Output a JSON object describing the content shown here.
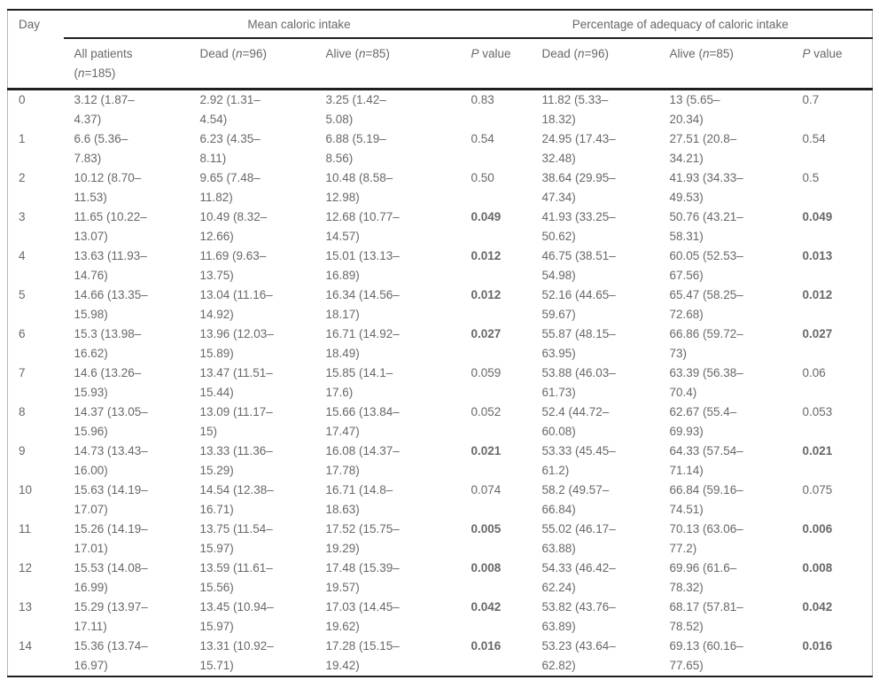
{
  "table": {
    "groups": [
      {
        "label": "Day",
        "span": 1
      },
      {
        "label": "Mean caloric intake",
        "span": 4
      },
      {
        "label": "Percentage of adequacy of caloric intake",
        "span": 3
      }
    ],
    "columns": [
      "All patients\n(n=185)",
      "Dead (n=96)",
      "Alive (n=85)",
      "P value",
      "Dead (n=96)",
      "Alive (n=85)",
      "P value"
    ],
    "rows": [
      {
        "day": "0",
        "mean_all": "3.12 (1.87–\n4.37)",
        "mean_dead": "2.92 (1.31–\n4.54)",
        "mean_alive": "3.25 (1.42–\n5.08)",
        "p_mean": "0.83",
        "pct_dead": "11.82 (5.33–\n18.32)",
        "pct_alive": "13 (5.65–\n20.34)",
        "p_pct": "0.7",
        "significant": false
      },
      {
        "day": "1",
        "mean_all": "6.6 (5.36–\n7.83)",
        "mean_dead": "6.23 (4.35–\n8.11)",
        "mean_alive": "6.88 (5.19–\n8.56)",
        "p_mean": "0.54",
        "pct_dead": "24.95 (17.43–\n32.48)",
        "pct_alive": "27.51 (20.8–\n34.21)",
        "p_pct": "0.54",
        "significant": false
      },
      {
        "day": "2",
        "mean_all": "10.12 (8.70–\n11.53)",
        "mean_dead": "9.65 (7.48–\n11.82)",
        "mean_alive": "10.48 (8.58–\n12.98)",
        "p_mean": "0.50",
        "pct_dead": "38.64 (29.95–\n47.34)",
        "pct_alive": "41.93 (34.33–\n49.53)",
        "p_pct": "0.5",
        "significant": false
      },
      {
        "day": "3",
        "mean_all": "11.65 (10.22–\n13.07)",
        "mean_dead": "10.49 (8.32–\n12.66)",
        "mean_alive": "12.68 (10.77–\n14.57)",
        "p_mean": "0.049",
        "pct_dead": "41.93 (33.25–\n50.62)",
        "pct_alive": "50.76 (43.21–\n58.31)",
        "p_pct": "0.049",
        "significant": true
      },
      {
        "day": "4",
        "mean_all": "13.63 (11.93–\n14.76)",
        "mean_dead": "11.69 (9.63–\n13.75)",
        "mean_alive": "15.01 (13.13–\n16.89)",
        "p_mean": "0.012",
        "pct_dead": "46.75 (38.51–\n54.98)",
        "pct_alive": "60.05 (52.53–\n67.56)",
        "p_pct": "0.013",
        "significant": true
      },
      {
        "day": "5",
        "mean_all": "14.66 (13.35–\n15.98)",
        "mean_dead": "13.04 (11.16–\n14.92)",
        "mean_alive": "16.34 (14.56–\n18.17)",
        "p_mean": "0.012",
        "pct_dead": "52.16 (44.65–\n59.67)",
        "pct_alive": "65.47 (58.25–\n72.68)",
        "p_pct": "0.012",
        "significant": true
      },
      {
        "day": "6",
        "mean_all": "15.3 (13.98–\n16.62)",
        "mean_dead": "13.96 (12.03–\n15.89)",
        "mean_alive": "16.71 (14.92–\n18.49)",
        "p_mean": "0.027",
        "pct_dead": "55.87 (48.15–\n63.95)",
        "pct_alive": "66.86 (59.72–\n73)",
        "p_pct": "0.027",
        "significant": true
      },
      {
        "day": "7",
        "mean_all": "14.6 (13.26–\n15.93)",
        "mean_dead": "13.47 (11.51–\n15.44)",
        "mean_alive": "15.85 (14.1–\n17.6)",
        "p_mean": "0.059",
        "pct_dead": "53.88 (46.03–\n61.73)",
        "pct_alive": "63.39 (56.38–\n70.4)",
        "p_pct": "0.06",
        "significant": false
      },
      {
        "day": "8",
        "mean_all": "14.37 (13.05–\n15.96)",
        "mean_dead": "13.09 (11.17–\n15)",
        "mean_alive": "15.66 (13.84–\n17.47)",
        "p_mean": "0.052",
        "pct_dead": "52.4 (44.72–\n60.08)",
        "pct_alive": "62.67 (55.4–\n69.93)",
        "p_pct": "0.053",
        "significant": false
      },
      {
        "day": "9",
        "mean_all": "14.73 (13.43–\n16.00)",
        "mean_dead": "13.33 (11.36–\n15.29)",
        "mean_alive": "16.08 (14.37–\n17.78)",
        "p_mean": "0.021",
        "pct_dead": "53.33 (45.45–\n61.2)",
        "pct_alive": "64.33 (57.54–\n71.14)",
        "p_pct": "0.021",
        "significant": true
      },
      {
        "day": "10",
        "mean_all": "15.63 (14.19–\n17.07)",
        "mean_dead": "14.54 (12.38–\n16.71)",
        "mean_alive": "16.71 (14.8–\n18.63)",
        "p_mean": "0.074",
        "pct_dead": "58.2 (49.57–\n66.84)",
        "pct_alive": "66.84 (59.16–\n74.51)",
        "p_pct": "0.075",
        "significant": false
      },
      {
        "day": "11",
        "mean_all": "15.26 (14.19–\n17.01)",
        "mean_dead": "13.75 (11.54–\n15.97)",
        "mean_alive": "17.52 (15.75–\n19.29)",
        "p_mean": "0.005",
        "pct_dead": "55.02 (46.17–\n63.88)",
        "pct_alive": "70.13 (63.06–\n77.2)",
        "p_pct": "0.006",
        "significant": true
      },
      {
        "day": "12",
        "mean_all": "15.53 (14.08–\n16.99)",
        "mean_dead": "13.59 (11.61–\n15.56)",
        "mean_alive": "17.48 (15.39–\n19.57)",
        "p_mean": "0.008",
        "pct_dead": "54.33 (46.42–\n62.24)",
        "pct_alive": "69.96 (61.6–\n78.32)",
        "p_pct": "0.008",
        "significant": true
      },
      {
        "day": "13",
        "mean_all": "15.29 (13.97–\n17.11)",
        "mean_dead": "13.45 (10.94–\n15.97)",
        "mean_alive": "17.03 (14.45–\n19.62)",
        "p_mean": "0.042",
        "pct_dead": "53.82 (43.76–\n63.89)",
        "pct_alive": "68.17 (57.81–\n78.52)",
        "p_pct": "0.042",
        "significant": true
      },
      {
        "day": "14",
        "mean_all": "15.36 (13.74–\n16.97)",
        "mean_dead": "13.31 (10.92–\n15.71)",
        "mean_alive": "17.28 (15.15–\n19.42)",
        "p_mean": "0.016",
        "pct_dead": "53.23 (43.64–\n62.82)",
        "pct_alive": "69.13 (60.16–\n77.65)",
        "p_pct": "0.016",
        "significant": true
      }
    ]
  },
  "colors": {
    "text": "#686868",
    "rule": "#1f1f1f",
    "side_rule": "#b5b5b5",
    "background": "#ffffff"
  }
}
